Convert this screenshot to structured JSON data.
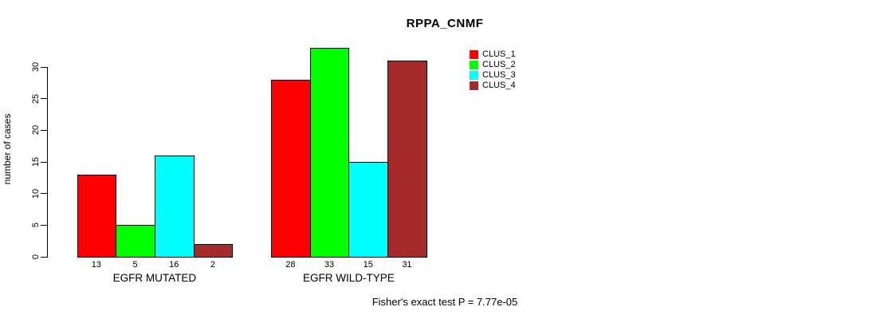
{
  "chart": {
    "title": "RPPA_CNMF",
    "ylabel": "number of cases",
    "footnote": "Fisher's exact test P = 7.77e-05"
  },
  "chart_data": {
    "type": "bar",
    "title": "RPPA_CNMF",
    "xlabel": "",
    "ylabel": "number of cases",
    "categories": [
      "EGFR MUTATED",
      "EGFR WILD-TYPE"
    ],
    "series": [
      {
        "name": "CLUS_1",
        "color": "#FF0000",
        "values": [
          13,
          28
        ]
      },
      {
        "name": "CLUS_2",
        "color": "#00FF00",
        "values": [
          5,
          33
        ]
      },
      {
        "name": "CLUS_3",
        "color": "#00FFFF",
        "values": [
          16,
          15
        ]
      },
      {
        "name": "CLUS_4",
        "color": "#A52A2A",
        "values": [
          2,
          31
        ]
      }
    ],
    "yticks": [
      0,
      5,
      10,
      15,
      20,
      25,
      30
    ],
    "ylim": [
      0,
      30
    ],
    "grid": false,
    "bar_value_labels": true,
    "legend_position": "right-of-plot",
    "legend_entries": [
      "CLUS_1",
      "CLUS_2",
      "CLUS_3",
      "CLUS_4"
    ],
    "annotation": "Fisher's exact test P = 7.77e-05"
  }
}
